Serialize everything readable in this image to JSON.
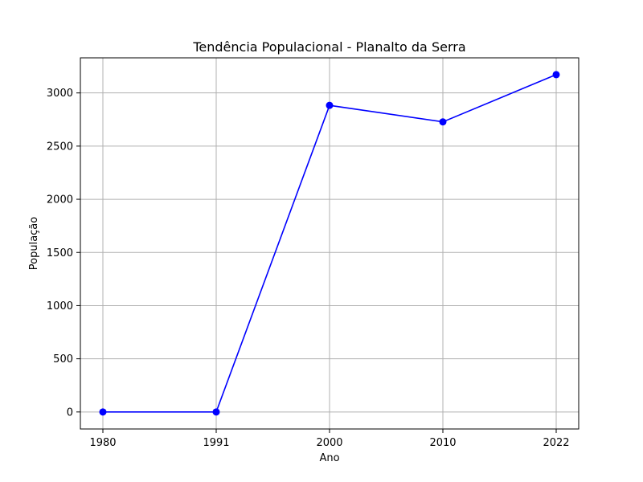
{
  "chart_data": {
    "type": "line",
    "title": "Tendência Populacional - Planalto da Serra",
    "xlabel": "Ano",
    "ylabel": "População",
    "categories": [
      "1980",
      "1991",
      "2000",
      "2010",
      "2022"
    ],
    "x_tick_labels": [
      "1980",
      "1991",
      "2000",
      "2010",
      "2022"
    ],
    "y_ticks": [
      0,
      500,
      1000,
      1500,
      2000,
      2500,
      3000
    ],
    "y_tick_labels": [
      "0",
      "500",
      "1000",
      "1500",
      "2000",
      "2500",
      "3000"
    ],
    "ylim": [
      -160,
      3330
    ],
    "grid": true,
    "series": [
      {
        "color": "#0000ff",
        "marker": "circle",
        "values": [
          0,
          0,
          2883,
          2728,
          3172
        ]
      }
    ]
  }
}
